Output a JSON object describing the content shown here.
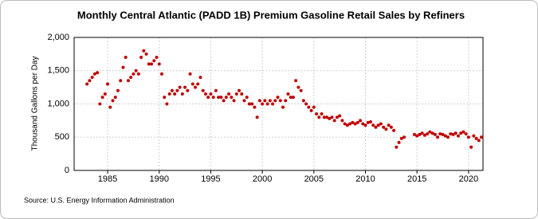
{
  "chart_data": {
    "type": "scatter",
    "title": "Monthly Central Atlantic (PADD 1B) Premium Gasoline Retail Sales by Refiners",
    "y_label": "Thousand Gallons per Day",
    "source": "Source: U.S. Energy Information Administration",
    "color": "#c00000",
    "grid": true,
    "xlim": [
      1981.75,
      2021.4
    ],
    "xticks": [
      1985,
      1990,
      1995,
      2000,
      2005,
      2010,
      2015,
      2020
    ],
    "ylim": [
      0,
      2000
    ],
    "yticks": [
      0,
      500,
      {
        "value": 1000,
        "label": "1,000"
      },
      {
        "value": 1500,
        "label": "1,500"
      },
      {
        "value": 2000,
        "label": "2,000"
      }
    ],
    "series": [
      {
        "name": "Premium Gasoline Retail Sales",
        "color": "#c00000",
        "x": [
          1983.0,
          1983.25,
          1983.5,
          1983.75,
          1984.0,
          1984.25,
          1984.5,
          1984.75,
          1985.0,
          1985.25,
          1985.5,
          1985.75,
          1986.0,
          1986.25,
          1986.5,
          1986.75,
          1987.0,
          1987.25,
          1987.5,
          1987.75,
          1988.0,
          1988.25,
          1988.5,
          1988.75,
          1989.0,
          1989.25,
          1989.5,
          1989.75,
          1990.0,
          1990.25,
          1990.5,
          1990.75,
          1991.0,
          1991.25,
          1991.5,
          1991.75,
          1992.0,
          1992.25,
          1992.5,
          1992.75,
          1993.0,
          1993.25,
          1993.5,
          1993.75,
          1994.0,
          1994.25,
          1994.5,
          1994.75,
          1995.0,
          1995.25,
          1995.5,
          1995.75,
          1996.0,
          1996.25,
          1996.5,
          1996.75,
          1997.0,
          1997.25,
          1997.5,
          1997.75,
          1998.0,
          1998.25,
          1998.5,
          1998.75,
          1999.0,
          1999.25,
          1999.5,
          1999.75,
          2000.0,
          2000.25,
          2000.5,
          2000.75,
          2001.0,
          2001.25,
          2001.5,
          2001.75,
          2002.0,
          2002.25,
          2002.5,
          2002.75,
          2003.0,
          2003.25,
          2003.5,
          2003.75,
          2004.0,
          2004.25,
          2004.5,
          2004.75,
          2005.0,
          2005.25,
          2005.5,
          2005.75,
          2006.0,
          2006.25,
          2006.5,
          2006.75,
          2007.0,
          2007.25,
          2007.5,
          2007.75,
          2008.0,
          2008.25,
          2008.5,
          2008.75,
          2009.0,
          2009.25,
          2009.5,
          2009.75,
          2010.0,
          2010.25,
          2010.5,
          2010.75,
          2011.0,
          2011.25,
          2011.5,
          2011.75,
          2012.0,
          2012.25,
          2012.5,
          2012.75,
          2013.0,
          2013.25,
          2013.5,
          2013.75,
          2014.75,
          2015.0,
          2015.25,
          2015.5,
          2015.75,
          2016.0,
          2016.25,
          2016.5,
          2016.75,
          2017.0,
          2017.25,
          2017.5,
          2017.75,
          2018.0,
          2018.25,
          2018.5,
          2018.75,
          2019.0,
          2019.25,
          2019.5,
          2019.75,
          2020.0,
          2020.25,
          2020.5,
          2020.75,
          2021.0,
          2021.25
        ],
        "values": [
          1300,
          1350,
          1400,
          1450,
          1470,
          1000,
          1100,
          1150,
          1300,
          950,
          1050,
          1100,
          1200,
          1350,
          1550,
          1700,
          1350,
          1400,
          1450,
          1500,
          1450,
          1700,
          1800,
          1750,
          1600,
          1600,
          1650,
          1700,
          1600,
          1450,
          1100,
          1000,
          1150,
          1200,
          1150,
          1200,
          1250,
          1150,
          1250,
          1200,
          1450,
          1300,
          1250,
          1300,
          1400,
          1200,
          1150,
          1100,
          1150,
          1100,
          1200,
          1100,
          1100,
          1050,
          1100,
          1150,
          1100,
          1050,
          1150,
          1200,
          1150,
          1050,
          1100,
          1000,
          1000,
          950,
          800,
          1050,
          1000,
          1050,
          1000,
          1050,
          1000,
          1050,
          1100,
          1050,
          950,
          1050,
          1150,
          1100,
          1100,
          1350,
          1250,
          1200,
          1050,
          1000,
          950,
          900,
          950,
          850,
          800,
          850,
          800,
          800,
          780,
          800,
          750,
          800,
          820,
          750,
          700,
          680,
          700,
          720,
          700,
          720,
          750,
          700,
          680,
          720,
          730,
          680,
          650,
          680,
          700,
          650,
          620,
          680,
          650,
          600,
          350,
          420,
          480,
          500,
          540,
          520,
          540,
          560,
          530,
          550,
          580,
          560,
          540,
          500,
          550,
          540,
          520,
          500,
          550,
          540,
          560,
          520,
          560,
          580,
          550,
          500,
          350,
          520,
          480,
          450,
          500
        ]
      }
    ]
  }
}
